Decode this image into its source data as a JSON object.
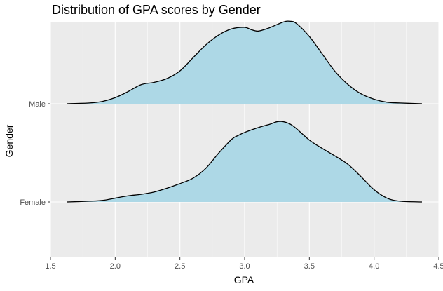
{
  "chart_data": {
    "type": "area",
    "subtype": "ridgeline-density",
    "title": "Distribution of GPA scores by Gender",
    "xlabel": "GPA",
    "ylabel": "Gender",
    "xlim": [
      1.5,
      4.5
    ],
    "x_ticks": [
      1.5,
      2.0,
      2.5,
      3.0,
      3.5,
      4.0,
      4.5
    ],
    "x_tick_labels": [
      "1.5",
      "2.0",
      "2.5",
      "3.0",
      "3.5",
      "4.0",
      "4.5"
    ],
    "categories": [
      "Female",
      "Male"
    ],
    "grid": true,
    "legend": "none",
    "fill_color": "#add8e6",
    "line_color": "#000000",
    "panel_background": "#ebebeb",
    "series": [
      {
        "name": "Male",
        "x": [
          1.63,
          1.8,
          1.9,
          2.0,
          2.1,
          2.2,
          2.3,
          2.4,
          2.5,
          2.6,
          2.7,
          2.8,
          2.9,
          3.0,
          3.05,
          3.1,
          3.15,
          3.2,
          3.3,
          3.35,
          3.4,
          3.5,
          3.6,
          3.7,
          3.8,
          3.9,
          4.0,
          4.1,
          4.2,
          4.37
        ],
        "density": [
          0.0,
          0.01,
          0.03,
          0.08,
          0.16,
          0.25,
          0.28,
          0.33,
          0.43,
          0.6,
          0.77,
          0.9,
          0.98,
          1.0,
          0.97,
          0.95,
          0.97,
          1.0,
          1.07,
          1.08,
          1.05,
          0.88,
          0.65,
          0.42,
          0.25,
          0.13,
          0.06,
          0.02,
          0.01,
          0.0
        ]
      },
      {
        "name": "Female",
        "x": [
          1.63,
          1.8,
          1.9,
          2.0,
          2.1,
          2.2,
          2.3,
          2.4,
          2.5,
          2.6,
          2.7,
          2.8,
          2.9,
          2.95,
          3.0,
          3.1,
          3.2,
          3.25,
          3.3,
          3.35,
          3.4,
          3.5,
          3.6,
          3.7,
          3.8,
          3.9,
          4.0,
          4.1,
          4.2,
          4.37
        ],
        "density": [
          0.0,
          0.01,
          0.02,
          0.05,
          0.08,
          0.1,
          0.13,
          0.18,
          0.24,
          0.31,
          0.44,
          0.64,
          0.82,
          0.87,
          0.91,
          0.97,
          1.02,
          1.05,
          1.05,
          1.02,
          0.96,
          0.81,
          0.7,
          0.6,
          0.49,
          0.33,
          0.16,
          0.05,
          0.01,
          0.0
        ]
      }
    ]
  }
}
